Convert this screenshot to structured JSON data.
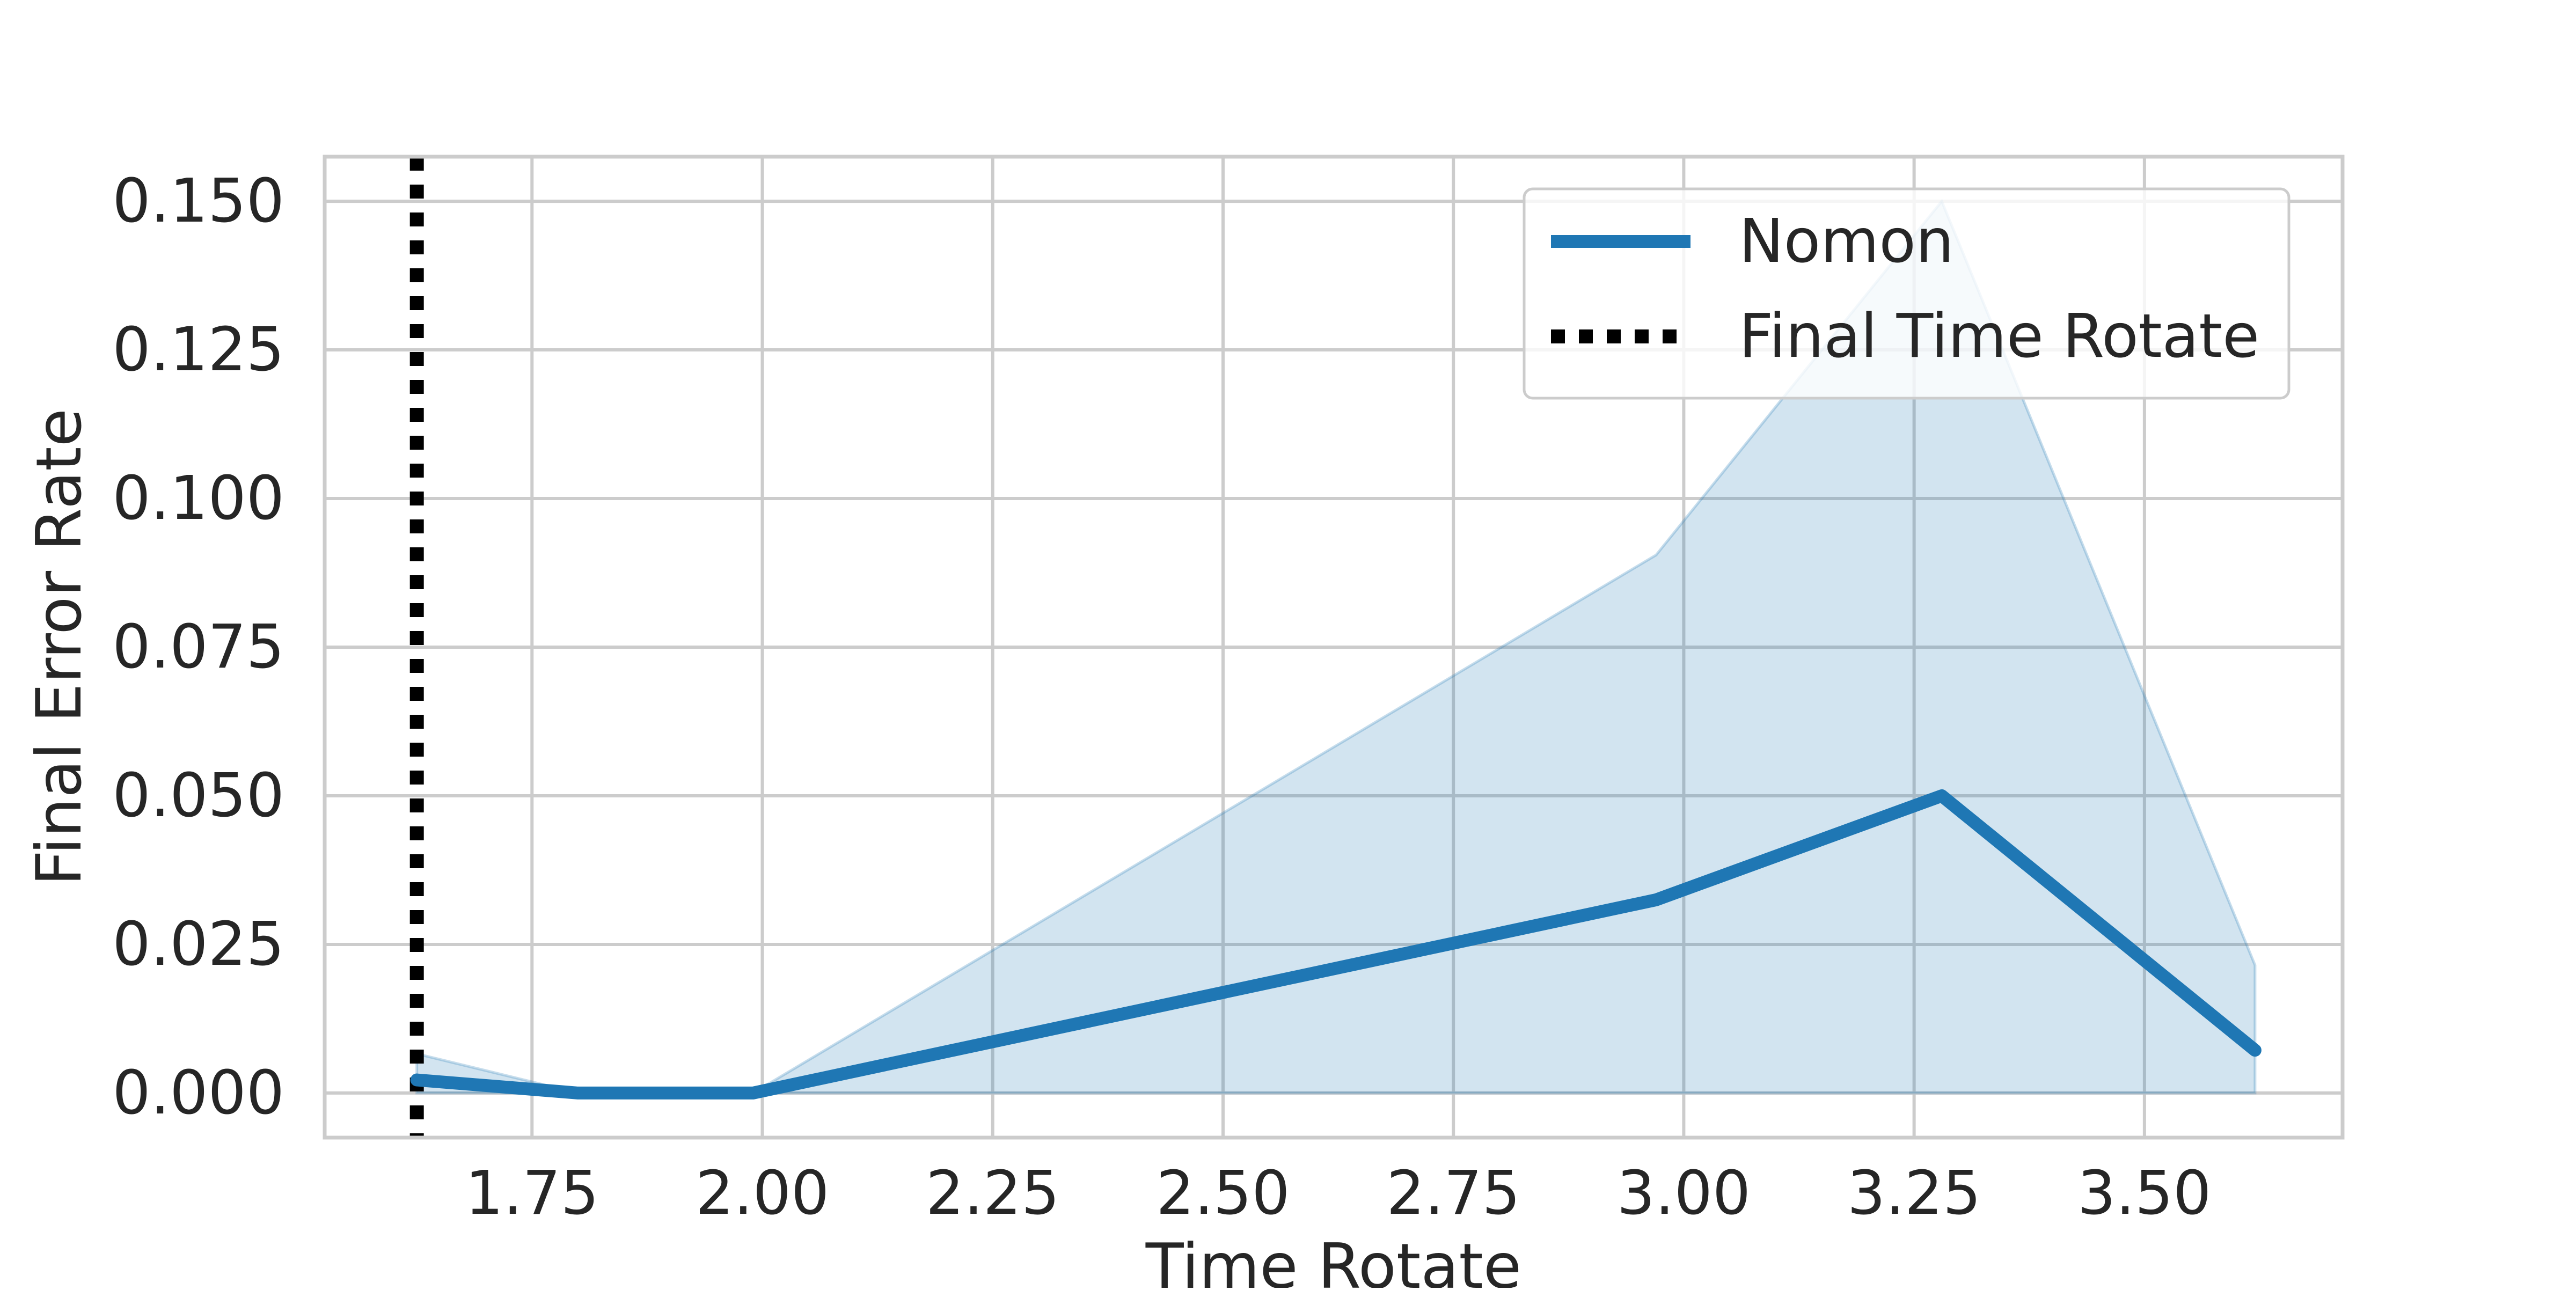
{
  "chart_data": {
    "type": "line",
    "title": "",
    "xlabel": "Time Rotate",
    "ylabel": "Final Error Rate",
    "xlim": [
      1.525,
      3.715
    ],
    "ylim": [
      -0.0075,
      0.1575
    ],
    "xticks": [
      1.75,
      2.0,
      2.25,
      2.5,
      2.75,
      3.0,
      3.25,
      3.5
    ],
    "xtick_labels": [
      "1.75",
      "2.00",
      "2.25",
      "2.50",
      "2.75",
      "3.00",
      "3.25",
      "3.50"
    ],
    "yticks": [
      0.0,
      0.025,
      0.05,
      0.075,
      0.1,
      0.125,
      0.15
    ],
    "ytick_labels": [
      "0.000",
      "0.025",
      "0.050",
      "0.075",
      "0.100",
      "0.125",
      "0.150"
    ],
    "grid": true,
    "legend_position": "top-right",
    "series": [
      {
        "name": "Nomon",
        "color": "#1f77b4",
        "x": [
          1.625,
          1.8,
          1.99,
          2.97,
          3.28,
          3.62
        ],
        "y": [
          0.0022,
          0.0,
          0.0,
          0.0325,
          0.05,
          0.0072
        ],
        "ci_lower": [
          0.0,
          0.0,
          0.0,
          0.0,
          0.0,
          0.0
        ],
        "ci_upper": [
          0.0066,
          0.0,
          0.0,
          0.0905,
          0.15,
          0.0215
        ]
      }
    ],
    "reference_lines": [
      {
        "name": "Final Time Rotate",
        "orientation": "vertical",
        "x": 1.625,
        "style": "dotted",
        "color": "#000000"
      }
    ]
  }
}
